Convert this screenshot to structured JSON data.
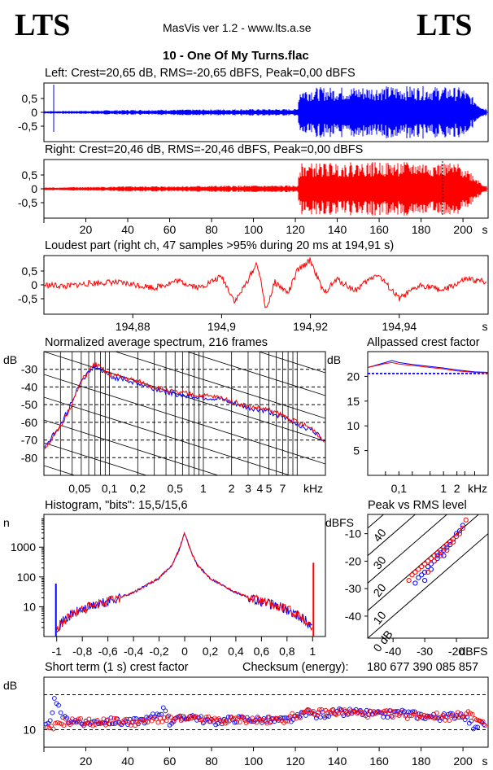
{
  "header": {
    "logo_left": "LTS",
    "logo_right": "LTS",
    "app_title": "MasVis ver 1.2 - www.lts.a.se",
    "file_name": "10 - One Of My Turns.flac"
  },
  "colors": {
    "left": "#0000ff",
    "right": "#ff0000",
    "grid": "#000000"
  },
  "chart_data": [
    {
      "id": "left",
      "type": "line",
      "title": "Left: Crest=20,65 dB, RMS=-20,65 dBFS, Peak=0,00 dBFS",
      "stats": {
        "crest_db": 20.65,
        "rms_dbfs": -20.65,
        "peak_dbfs": 0.0
      },
      "yticks": [
        "0,5",
        "0",
        "-0,5"
      ],
      "ylim": [
        -1,
        1
      ],
      "xlim": [
        0,
        212
      ],
      "series": [
        {
          "color": "#0000ff",
          "x": [
            0,
            20,
            40,
            60,
            80,
            100,
            121,
            122,
            140,
            160,
            180,
            200,
            210
          ],
          "env": [
            0.05,
            0.06,
            0.09,
            0.1,
            0.11,
            0.12,
            0.12,
            0.9,
            0.92,
            0.95,
            0.95,
            0.9,
            0.15
          ]
        }
      ]
    },
    {
      "id": "right",
      "type": "line",
      "title": "Right: Crest=20,46 dB, RMS=-20,46 dBFS, Peak=0,00 dBFS",
      "stats": {
        "crest_db": 20.46,
        "rms_dbfs": -20.46,
        "peak_dbfs": 0.0
      },
      "yticks": [
        "0,5",
        "0",
        "-0,5"
      ],
      "ylim": [
        -1,
        1
      ],
      "xlim": [
        0,
        212
      ],
      "xticks": [
        "20",
        "40",
        "60",
        "80",
        "100",
        "120",
        "140",
        "160",
        "180",
        "200",
        "s"
      ],
      "series": [
        {
          "color": "#ff0000",
          "x": [
            0,
            20,
            40,
            60,
            80,
            100,
            121,
            122,
            140,
            160,
            180,
            200,
            210
          ],
          "env": [
            0.05,
            0.07,
            0.09,
            0.1,
            0.11,
            0.12,
            0.12,
            0.92,
            0.95,
            0.97,
            0.97,
            0.9,
            0.15
          ]
        }
      ]
    },
    {
      "id": "loudest",
      "type": "line",
      "title": "Loudest part (right ch, 47 samples >95% during 20 ms at 194,91 s)",
      "yticks": [
        "0,5",
        "0",
        "-0,5"
      ],
      "ylim": [
        -1,
        1
      ],
      "xlim": [
        194.86,
        194.96
      ],
      "xticks": [
        "194,88",
        "194,9",
        "194,92",
        "194,94",
        "s"
      ],
      "x": [
        194.86,
        194.865,
        194.87,
        194.875,
        194.88,
        194.885,
        194.89,
        194.895,
        194.9,
        194.903,
        194.905,
        194.908,
        194.91,
        194.912,
        194.915,
        194.917,
        194.92,
        194.923,
        194.926,
        194.93,
        194.935,
        194.94,
        194.945,
        194.95,
        194.955,
        194.96
      ],
      "y": [
        0.0,
        -0.05,
        0.05,
        0.1,
        0.02,
        -0.1,
        0.15,
        -0.1,
        0.3,
        -0.6,
        -0.1,
        0.8,
        -0.9,
        0.1,
        -0.3,
        0.5,
        0.9,
        -0.3,
        0.2,
        -0.2,
        0.4,
        -0.5,
        0.0,
        -0.2,
        0.2,
        0.1
      ]
    },
    {
      "id": "spectrum",
      "type": "line",
      "title": "Normalized average spectrum, 216 frames",
      "ylabel": "dB",
      "yticks": [
        "-30",
        "-40",
        "-50",
        "-60",
        "-70",
        "-80"
      ],
      "xticks": [
        "0,05",
        "0,1",
        "0,2",
        "0,5",
        "1",
        "2",
        "3",
        "4",
        "5",
        "7",
        "kHz"
      ],
      "ylim": [
        -90,
        -20
      ],
      "x": [
        0.02,
        0.03,
        0.04,
        0.05,
        0.06,
        0.07,
        0.1,
        0.15,
        0.2,
        0.3,
        0.5,
        0.7,
        1,
        1.5,
        2,
        3,
        4,
        5,
        7,
        10,
        15,
        20
      ],
      "series": [
        {
          "name": "left",
          "color": "#0000ff",
          "values": [
            -74,
            -62,
            -48,
            -36,
            -32,
            -28,
            -34,
            -36,
            -38,
            -41,
            -44,
            -45,
            -46,
            -47,
            -49,
            -52,
            -53,
            -54,
            -57,
            -61,
            -65,
            -71
          ]
        },
        {
          "name": "right",
          "color": "#ff0000",
          "values": [
            -75,
            -63,
            -49,
            -37,
            -31,
            -27,
            -33,
            -35,
            -37,
            -40,
            -43,
            -44,
            -45,
            -46,
            -48,
            -51,
            -52,
            -53,
            -56,
            -60,
            -64,
            -72
          ]
        }
      ]
    },
    {
      "id": "allpassed",
      "type": "line",
      "title": "Allpassed crest factor",
      "ylabel": "dB",
      "yticks": [
        "20",
        "15",
        "10",
        "5"
      ],
      "xticks": [
        "0,1",
        "1",
        "2",
        "kHz"
      ],
      "ylim": [
        0,
        25
      ],
      "x": [
        0.02,
        0.05,
        0.07,
        0.1,
        0.2,
        0.5,
        1,
        2,
        5,
        10
      ],
      "series": [
        {
          "name": "left",
          "color": "#0000ff",
          "values": [
            21.8,
            22.8,
            23.2,
            22.8,
            22.4,
            22.0,
            21.7,
            21.3,
            20.9,
            20.8
          ]
        },
        {
          "name": "right",
          "color": "#ff0000",
          "values": [
            21.8,
            22.6,
            22.8,
            22.5,
            22.2,
            21.8,
            21.5,
            21.1,
            20.8,
            20.7
          ]
        }
      ],
      "reference": {
        "left": 20.65,
        "right": 20.46
      }
    },
    {
      "id": "histogram",
      "type": "line",
      "title": "Histogram, \"bits\": 15,5/15,6",
      "ylabel": "n",
      "yticks": [
        "1000",
        "100",
        "10"
      ],
      "xticks": [
        "-1",
        "-0,8",
        "-0,6",
        "-0,4",
        "-0,2",
        "0",
        "0,2",
        "0,4",
        "0,6",
        "0,8",
        "1"
      ],
      "x": [
        -1,
        -0.9,
        -0.8,
        -0.6,
        -0.4,
        -0.2,
        -0.1,
        -0.05,
        0,
        0.05,
        0.1,
        0.2,
        0.4,
        0.6,
        0.8,
        0.9,
        1
      ],
      "y": [
        2,
        5,
        8,
        15,
        30,
        90,
        250,
        700,
        3000,
        700,
        250,
        90,
        30,
        15,
        8,
        5,
        2
      ],
      "spikes": {
        "left_at_minus1": 60,
        "right_at_1": 300
      }
    },
    {
      "id": "peak_vs_rms",
      "type": "scatter",
      "title": "Peak vs RMS level",
      "ylabel": "dBFS",
      "xlabel": "dBFS",
      "yticks": [
        "-10",
        "-20",
        "-30",
        "-40"
      ],
      "xticks": [
        "-40",
        "-30",
        "-20"
      ],
      "diag_labels": [
        "40",
        "30",
        "20",
        "10",
        "0 dB"
      ],
      "xlim": [
        -48,
        -10
      ],
      "ylim": [
        -48,
        -3
      ],
      "series": [
        {
          "name": "left",
          "color": "#0000ff",
          "x": [
            -33,
            -32,
            -31,
            -30,
            -29,
            -28,
            -27,
            -26,
            -25,
            -24,
            -23,
            -22,
            -21,
            -20,
            -19,
            -18,
            -30,
            -28,
            -26,
            -24,
            -22
          ],
          "y": [
            -28,
            -26,
            -25,
            -24,
            -22,
            -21,
            -20,
            -18,
            -17,
            -16,
            -15,
            -14,
            -12,
            -10,
            -9,
            -7,
            -27,
            -23,
            -19,
            -18,
            -13
          ]
        },
        {
          "name": "right",
          "color": "#ff0000",
          "x": [
            -35,
            -34,
            -33,
            -32,
            -31,
            -30,
            -29,
            -28,
            -27,
            -26,
            -25,
            -24,
            -23,
            -22,
            -21,
            -20,
            -19,
            -18,
            -17,
            -29,
            -27,
            -25,
            -23,
            -21
          ],
          "y": [
            -27,
            -25,
            -24,
            -23,
            -22,
            -21,
            -20,
            -19,
            -18,
            -17,
            -16,
            -15,
            -14,
            -13,
            -12,
            -11,
            -10,
            -8,
            -5,
            -24,
            -20,
            -18,
            -16,
            -13
          ]
        }
      ]
    },
    {
      "id": "short_term_crest",
      "type": "scatter",
      "title": "Short term (1 s) crest factor",
      "checksum_label": "Checksum (energy):",
      "checksum_value": "180 677 390 085 857",
      "ylabel": "dB",
      "yticks": [
        "10"
      ],
      "xticks": [
        "20",
        "40",
        "60",
        "80",
        "100",
        "120",
        "140",
        "160",
        "180",
        "200",
        "s"
      ],
      "xlim": [
        0,
        212
      ],
      "ylim": [
        5,
        25
      ],
      "series": [
        {
          "name": "left",
          "color": "#0000ff",
          "x": [
            2,
            5,
            10,
            20,
            30,
            40,
            50,
            58,
            60,
            70,
            80,
            90,
            100,
            110,
            120,
            125,
            130,
            140,
            150,
            160,
            170,
            180,
            190,
            200,
            205,
            210
          ],
          "y": [
            11,
            18,
            13,
            12,
            12.5,
            12,
            13,
            16,
            12,
            14,
            12,
            13,
            13,
            12.5,
            13,
            15,
            14,
            15,
            15,
            14,
            15,
            14,
            13.5,
            14.5,
            11,
            12
          ]
        },
        {
          "name": "right",
          "color": "#ff0000",
          "x": [
            3,
            8,
            15,
            25,
            35,
            45,
            55,
            65,
            75,
            85,
            95,
            105,
            115,
            123,
            135,
            145,
            155,
            165,
            175,
            185,
            195,
            203,
            208
          ],
          "y": [
            10,
            12,
            12.5,
            12,
            12.5,
            12,
            13,
            13,
            13,
            12.5,
            13,
            12.5,
            13,
            14.5,
            15,
            15,
            14.5,
            14.5,
            14,
            14,
            13.5,
            15,
            11.5
          ]
        }
      ]
    }
  ]
}
